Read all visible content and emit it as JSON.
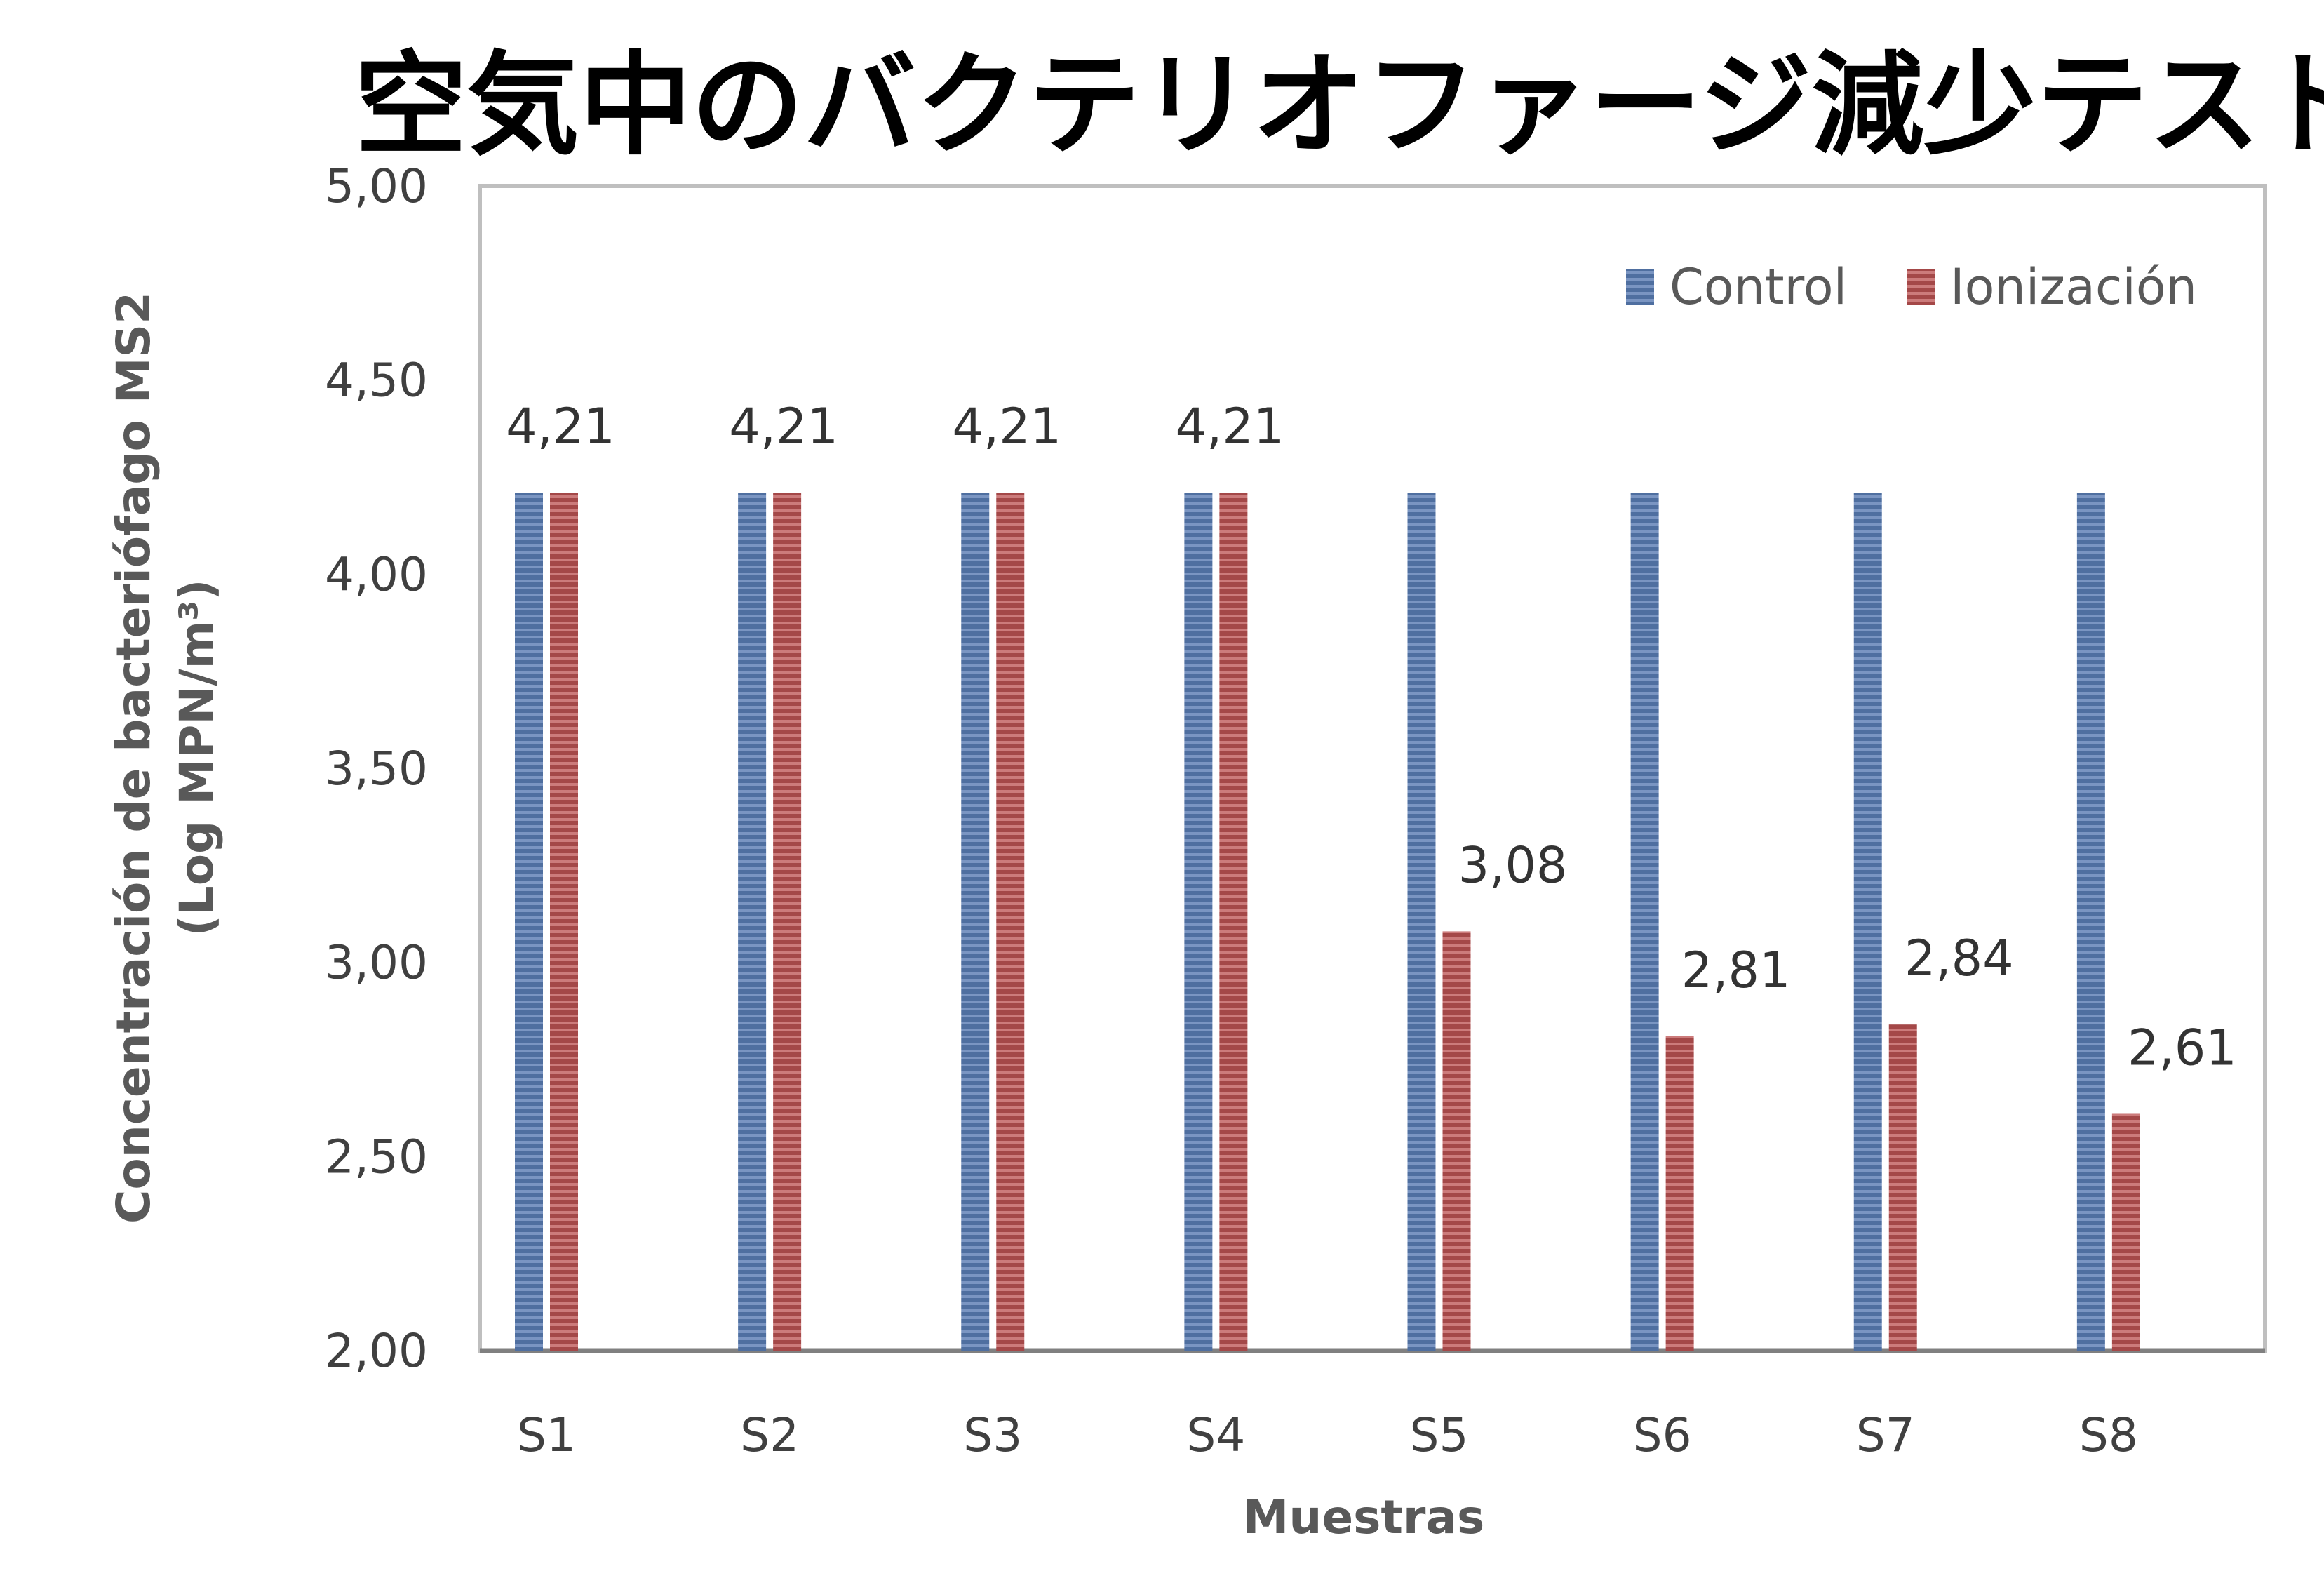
{
  "chart_data": {
    "type": "bar",
    "title": "空気中のバクテリオファージ減少テスト",
    "xlabel": "Muestras",
    "ylabel_line1": "Concentración de bacteriófago MS2",
    "ylabel_line2": "(Log MPN/m³)",
    "categories": [
      "S1",
      "S2",
      "S3",
      "S4",
      "S5",
      "S6",
      "S7",
      "S8"
    ],
    "series": [
      {
        "name": "Control",
        "color": "#4F6FA0",
        "stripe": "#7A95C2",
        "values": [
          4.21,
          4.21,
          4.21,
          4.21,
          4.21,
          4.21,
          4.21,
          4.21
        ]
      },
      {
        "name": "Ionización",
        "color": "#A44848",
        "stripe": "#CC7B7B",
        "values": [
          4.21,
          4.21,
          4.21,
          4.21,
          3.08,
          2.81,
          2.84,
          2.61
        ]
      }
    ],
    "data_labels": [
      "4,21",
      "4,21",
      "4,21",
      "4,21",
      "3,08",
      "2,81",
      "2,84",
      "2,61"
    ],
    "ylim": [
      2.0,
      5.0
    ],
    "yticks": [
      2.0,
      2.5,
      3.0,
      3.5,
      4.0,
      4.5,
      5.0
    ],
    "ytick_labels": [
      "2,00",
      "2,50",
      "3,00",
      "3,50",
      "4,00",
      "4,50",
      "5,00"
    ],
    "legend_position": "top-right",
    "grid": false
  }
}
